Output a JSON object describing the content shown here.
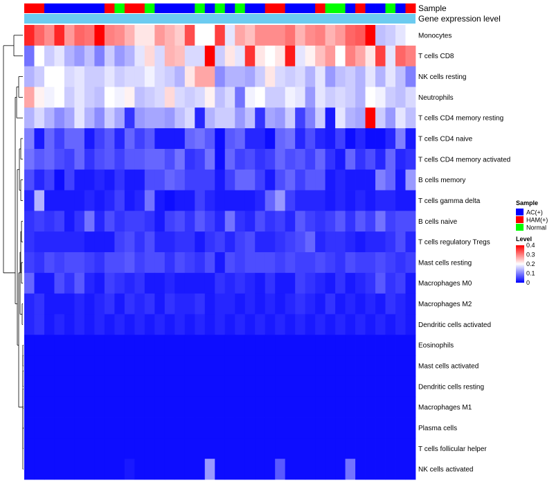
{
  "chart_data": {
    "type": "heatmap",
    "title": "",
    "annotation_labels": {
      "sample": "Sample",
      "expression": "Gene expression level"
    },
    "rows": [
      "Monocytes",
      "T cells CD8",
      "NK cells resting",
      "Neutrophils",
      "T cells CD4 memory resting",
      "T cells CD4 naive",
      "T cells CD4 memory activated",
      "B cells memory",
      "T cells gamma delta",
      "B cells naive",
      "T cells regulatory  Tregs",
      "Mast cells resting",
      "Macrophages M0",
      "Macrophages M2",
      "Dendritic cells activated",
      "Eosinophils",
      "Mast cells activated",
      "Dendritic cells resting",
      "Macrophages M1",
      "Plasma cells",
      "T cells follicular helper",
      "NK cells activated"
    ],
    "column_groups": [
      "H",
      "H",
      "A",
      "A",
      "A",
      "A",
      "A",
      "A",
      "H",
      "N",
      "H",
      "H",
      "N",
      "A",
      "A",
      "A",
      "A",
      "N",
      "A",
      "N",
      "A",
      "N",
      "A",
      "A",
      "H",
      "H",
      "A",
      "A",
      "A",
      "H",
      "N",
      "N",
      "A",
      "H",
      "A",
      "A",
      "N",
      "A",
      "H"
    ],
    "values": [
      [
        0.37,
        0.32,
        0.29,
        0.37,
        0.28,
        0.32,
        0.31,
        0.4,
        0.3,
        0.29,
        0.26,
        0.22,
        0.22,
        0.28,
        0.26,
        0.24,
        0.34,
        0.2,
        0.2,
        0.35,
        0.18,
        0.27,
        0.25,
        0.29,
        0.29,
        0.29,
        0.31,
        0.26,
        0.29,
        0.3,
        0.26,
        0.28,
        0.32,
        0.33,
        0.4,
        0.15,
        0.16,
        0.18,
        0.2
      ],
      [
        0.09,
        0.2,
        0.16,
        0.18,
        0.14,
        0.12,
        0.15,
        0.1,
        0.16,
        0.12,
        0.14,
        0.18,
        0.23,
        0.17,
        0.26,
        0.25,
        0.17,
        0.17,
        0.4,
        0.16,
        0.22,
        0.18,
        0.36,
        0.22,
        0.2,
        0.22,
        0.38,
        0.18,
        0.21,
        0.25,
        0.28,
        0.2,
        0.3,
        0.27,
        0.22,
        0.35,
        0.18,
        0.32,
        0.3
      ],
      [
        0.14,
        0.16,
        0.2,
        0.2,
        0.17,
        0.18,
        0.16,
        0.16,
        0.18,
        0.16,
        0.17,
        0.17,
        0.19,
        0.17,
        0.16,
        0.14,
        0.22,
        0.27,
        0.27,
        0.11,
        0.14,
        0.14,
        0.13,
        0.16,
        0.22,
        0.17,
        0.16,
        0.17,
        0.14,
        0.18,
        0.12,
        0.15,
        0.16,
        0.14,
        0.18,
        0.14,
        0.18,
        0.15,
        0.1
      ],
      [
        0.27,
        0.21,
        0.19,
        0.2,
        0.16,
        0.18,
        0.16,
        0.15,
        0.2,
        0.19,
        0.21,
        0.15,
        0.16,
        0.17,
        0.23,
        0.17,
        0.16,
        0.17,
        0.21,
        0.15,
        0.17,
        0.09,
        0.19,
        0.2,
        0.16,
        0.16,
        0.19,
        0.18,
        0.12,
        0.18,
        0.16,
        0.17,
        0.16,
        0.14,
        0.2,
        0.19,
        0.16,
        0.15,
        0.17
      ],
      [
        0.14,
        0.17,
        0.14,
        0.11,
        0.13,
        0.18,
        0.14,
        0.11,
        0.16,
        0.13,
        0.04,
        0.12,
        0.13,
        0.13,
        0.12,
        0.15,
        0.17,
        0.03,
        0.14,
        0.16,
        0.16,
        0.12,
        0.15,
        0.04,
        0.13,
        0.12,
        0.16,
        0.05,
        0.1,
        0.16,
        0.02,
        0.18,
        0.14,
        0.13,
        0.4,
        0.16,
        0.12,
        0.18,
        0.15
      ],
      [
        0.1,
        0.02,
        0.08,
        0.05,
        0.08,
        0.08,
        0.02,
        0.05,
        0.07,
        0.03,
        0.08,
        0.05,
        0.07,
        0.02,
        0.02,
        0.02,
        0.08,
        0.09,
        0.07,
        0.01,
        0.07,
        0.08,
        0.03,
        0.03,
        0.01,
        0.08,
        0.09,
        0.03,
        0.06,
        0.03,
        0.02,
        0.05,
        0.01,
        0.03,
        0.01,
        0.01,
        0.03,
        0.1,
        0.02
      ],
      [
        0.09,
        0.07,
        0.08,
        0.06,
        0.05,
        0.08,
        0.04,
        0.06,
        0.07,
        0.05,
        0.07,
        0.07,
        0.08,
        0.08,
        0.06,
        0.09,
        0.04,
        0.05,
        0.09,
        0.01,
        0.08,
        0.05,
        0.06,
        0.04,
        0.05,
        0.08,
        0.06,
        0.07,
        0.05,
        0.08,
        0.04,
        0.02,
        0.08,
        0.04,
        0.06,
        0.03,
        0.08,
        0.03,
        0.04
      ],
      [
        0.06,
        0.03,
        0.05,
        0.01,
        0.05,
        0.02,
        0.02,
        0.03,
        0.02,
        0.04,
        0.02,
        0.02,
        0.06,
        0.06,
        0.08,
        0.07,
        0.05,
        0.05,
        0.05,
        0.02,
        0.05,
        0.08,
        0.08,
        0.05,
        0.02,
        0.06,
        0.08,
        0.05,
        0.07,
        0.07,
        0.02,
        0.03,
        0.02,
        0.02,
        0.02,
        0.1,
        0.08,
        0.02,
        0.12
      ],
      [
        0.03,
        0.14,
        0.02,
        0.02,
        0.02,
        0.02,
        0.03,
        0.02,
        0.03,
        0.05,
        0.02,
        0.03,
        0.09,
        0.02,
        0.01,
        0.02,
        0.02,
        0.05,
        0.03,
        0.02,
        0.02,
        0.02,
        0.02,
        0.03,
        0.08,
        0.12,
        0.05,
        0.03,
        0.03,
        0.03,
        0.02,
        0.03,
        0.02,
        0.03,
        0.02,
        0.03,
        0.03,
        0.02,
        0.02
      ],
      [
        0.04,
        0.05,
        0.04,
        0.05,
        0.02,
        0.04,
        0.09,
        0.03,
        0.06,
        0.04,
        0.05,
        0.05,
        0.04,
        0.02,
        0.05,
        0.06,
        0.04,
        0.07,
        0.05,
        0.03,
        0.09,
        0.04,
        0.03,
        0.06,
        0.04,
        0.05,
        0.03,
        0.07,
        0.05,
        0.04,
        0.05,
        0.07,
        0.04,
        0.07,
        0.05,
        0.09,
        0.05,
        0.06,
        0.06
      ],
      [
        0.04,
        0.03,
        0.03,
        0.03,
        0.03,
        0.03,
        0.02,
        0.02,
        0.02,
        0.05,
        0.06,
        0.04,
        0.06,
        0.03,
        0.03,
        0.04,
        0.04,
        0.02,
        0.04,
        0.05,
        0.03,
        0.05,
        0.06,
        0.03,
        0.03,
        0.04,
        0.05,
        0.06,
        0.08,
        0.03,
        0.04,
        0.04,
        0.03,
        0.02,
        0.03,
        0.03,
        0.04,
        0.06,
        0.03
      ],
      [
        0.05,
        0.04,
        0.06,
        0.05,
        0.06,
        0.06,
        0.05,
        0.04,
        0.06,
        0.06,
        0.07,
        0.05,
        0.06,
        0.06,
        0.04,
        0.06,
        0.05,
        0.04,
        0.06,
        0.02,
        0.06,
        0.05,
        0.06,
        0.06,
        0.06,
        0.05,
        0.06,
        0.05,
        0.05,
        0.06,
        0.05,
        0.04,
        0.06,
        0.05,
        0.05,
        0.06,
        0.05,
        0.04,
        0.05
      ],
      [
        0.08,
        0.02,
        0.02,
        0.06,
        0.04,
        0.07,
        0.03,
        0.02,
        0.05,
        0.04,
        0.03,
        0.04,
        0.02,
        0.02,
        0.03,
        0.02,
        0.02,
        0.02,
        0.02,
        0.04,
        0.03,
        0.04,
        0.03,
        0.02,
        0.04,
        0.02,
        0.02,
        0.05,
        0.04,
        0.03,
        0.02,
        0.04,
        0.02,
        0.03,
        0.04,
        0.07,
        0.04,
        0.05,
        0.02
      ],
      [
        0.03,
        0.04,
        0.02,
        0.02,
        0.02,
        0.03,
        0.02,
        0.03,
        0.04,
        0.02,
        0.04,
        0.03,
        0.04,
        0.02,
        0.04,
        0.03,
        0.03,
        0.04,
        0.02,
        0.03,
        0.03,
        0.02,
        0.03,
        0.02,
        0.03,
        0.02,
        0.03,
        0.04,
        0.03,
        0.02,
        0.04,
        0.02,
        0.03,
        0.02,
        0.03,
        0.02,
        0.04,
        0.03,
        0.02
      ],
      [
        0.03,
        0.04,
        0.02,
        0.03,
        0.02,
        0.03,
        0.02,
        0.03,
        0.02,
        0.03,
        0.02,
        0.03,
        0.02,
        0.03,
        0.02,
        0.03,
        0.02,
        0.03,
        0.02,
        0.03,
        0.02,
        0.03,
        0.02,
        0.03,
        0.02,
        0.03,
        0.02,
        0.03,
        0.02,
        0.03,
        0.02,
        0.03,
        0.02,
        0.03,
        0.02,
        0.03,
        0.02,
        0.03,
        0.02
      ],
      [
        0.01,
        0.01,
        0.01,
        0.01,
        0.01,
        0.01,
        0.01,
        0.01,
        0.01,
        0.01,
        0.01,
        0.01,
        0.01,
        0.01,
        0.01,
        0.01,
        0.01,
        0.01,
        0.01,
        0.01,
        0.01,
        0.01,
        0.01,
        0.01,
        0.01,
        0.01,
        0.01,
        0.01,
        0.01,
        0.01,
        0.01,
        0.01,
        0.01,
        0.01,
        0.01,
        0.01,
        0.01,
        0.01,
        0.01
      ],
      [
        0.01,
        0.01,
        0.01,
        0.01,
        0.01,
        0.01,
        0.01,
        0.01,
        0.01,
        0.01,
        0.01,
        0.01,
        0.01,
        0.01,
        0.01,
        0.01,
        0.01,
        0.01,
        0.01,
        0.01,
        0.01,
        0.01,
        0.01,
        0.01,
        0.01,
        0.01,
        0.01,
        0.01,
        0.01,
        0.01,
        0.01,
        0.01,
        0.01,
        0.01,
        0.01,
        0.01,
        0.01,
        0.01,
        0.01
      ],
      [
        0.01,
        0.01,
        0.01,
        0.01,
        0.01,
        0.01,
        0.01,
        0.01,
        0.01,
        0.01,
        0.01,
        0.01,
        0.01,
        0.01,
        0.01,
        0.01,
        0.01,
        0.01,
        0.01,
        0.01,
        0.01,
        0.01,
        0.01,
        0.01,
        0.01,
        0.01,
        0.01,
        0.01,
        0.01,
        0.01,
        0.01,
        0.01,
        0.01,
        0.01,
        0.01,
        0.01,
        0.01,
        0.01,
        0.01
      ],
      [
        0.01,
        0.01,
        0.01,
        0.01,
        0.01,
        0.01,
        0.01,
        0.01,
        0.01,
        0.01,
        0.01,
        0.01,
        0.01,
        0.01,
        0.01,
        0.01,
        0.01,
        0.01,
        0.01,
        0.01,
        0.01,
        0.01,
        0.01,
        0.01,
        0.01,
        0.01,
        0.01,
        0.01,
        0.01,
        0.01,
        0.01,
        0.01,
        0.01,
        0.01,
        0.01,
        0.01,
        0.01,
        0.01,
        0.01
      ],
      [
        0.01,
        0.01,
        0.01,
        0.01,
        0.01,
        0.01,
        0.01,
        0.01,
        0.01,
        0.01,
        0.01,
        0.01,
        0.01,
        0.01,
        0.01,
        0.01,
        0.01,
        0.01,
        0.01,
        0.01,
        0.01,
        0.01,
        0.01,
        0.01,
        0.01,
        0.01,
        0.01,
        0.01,
        0.01,
        0.01,
        0.01,
        0.01,
        0.01,
        0.01,
        0.01,
        0.01,
        0.01,
        0.01,
        0.01
      ],
      [
        0.01,
        0.01,
        0.01,
        0.01,
        0.01,
        0.01,
        0.01,
        0.01,
        0.01,
        0.01,
        0.01,
        0.01,
        0.01,
        0.01,
        0.01,
        0.01,
        0.01,
        0.01,
        0.01,
        0.01,
        0.01,
        0.01,
        0.01,
        0.01,
        0.01,
        0.01,
        0.01,
        0.01,
        0.01,
        0.01,
        0.01,
        0.01,
        0.01,
        0.01,
        0.01,
        0.01,
        0.01,
        0.01,
        0.01
      ],
      [
        0.01,
        0.01,
        0.01,
        0.01,
        0.01,
        0.01,
        0.01,
        0.01,
        0.01,
        0.01,
        0.02,
        0.01,
        0.01,
        0.01,
        0.01,
        0.01,
        0.01,
        0.01,
        0.12,
        0.01,
        0.01,
        0.01,
        0.01,
        0.01,
        0.01,
        0.07,
        0.01,
        0.01,
        0.01,
        0.01,
        0.01,
        0.01,
        0.09,
        0.01,
        0.01,
        0.01,
        0.01,
        0.01,
        0.01
      ]
    ],
    "legend": {
      "sample_title": "Sample",
      "groups": [
        {
          "key": "A",
          "label": "AC(+)",
          "color": "#0000ff"
        },
        {
          "key": "H",
          "label": "HAM(+)",
          "color": "#ff0000"
        },
        {
          "key": "N",
          "label": "Normal",
          "color": "#00ff00"
        }
      ],
      "level_title": "Level",
      "level_ticks": [
        "0.4",
        "0.3",
        "0.2",
        "0.1",
        "0"
      ],
      "level_range": [
        0,
        0.4
      ]
    },
    "colors": {
      "low": "#0000ff",
      "mid": "#ffffff",
      "high": "#ff0000",
      "expression_bar": "#6ccbf0"
    }
  }
}
